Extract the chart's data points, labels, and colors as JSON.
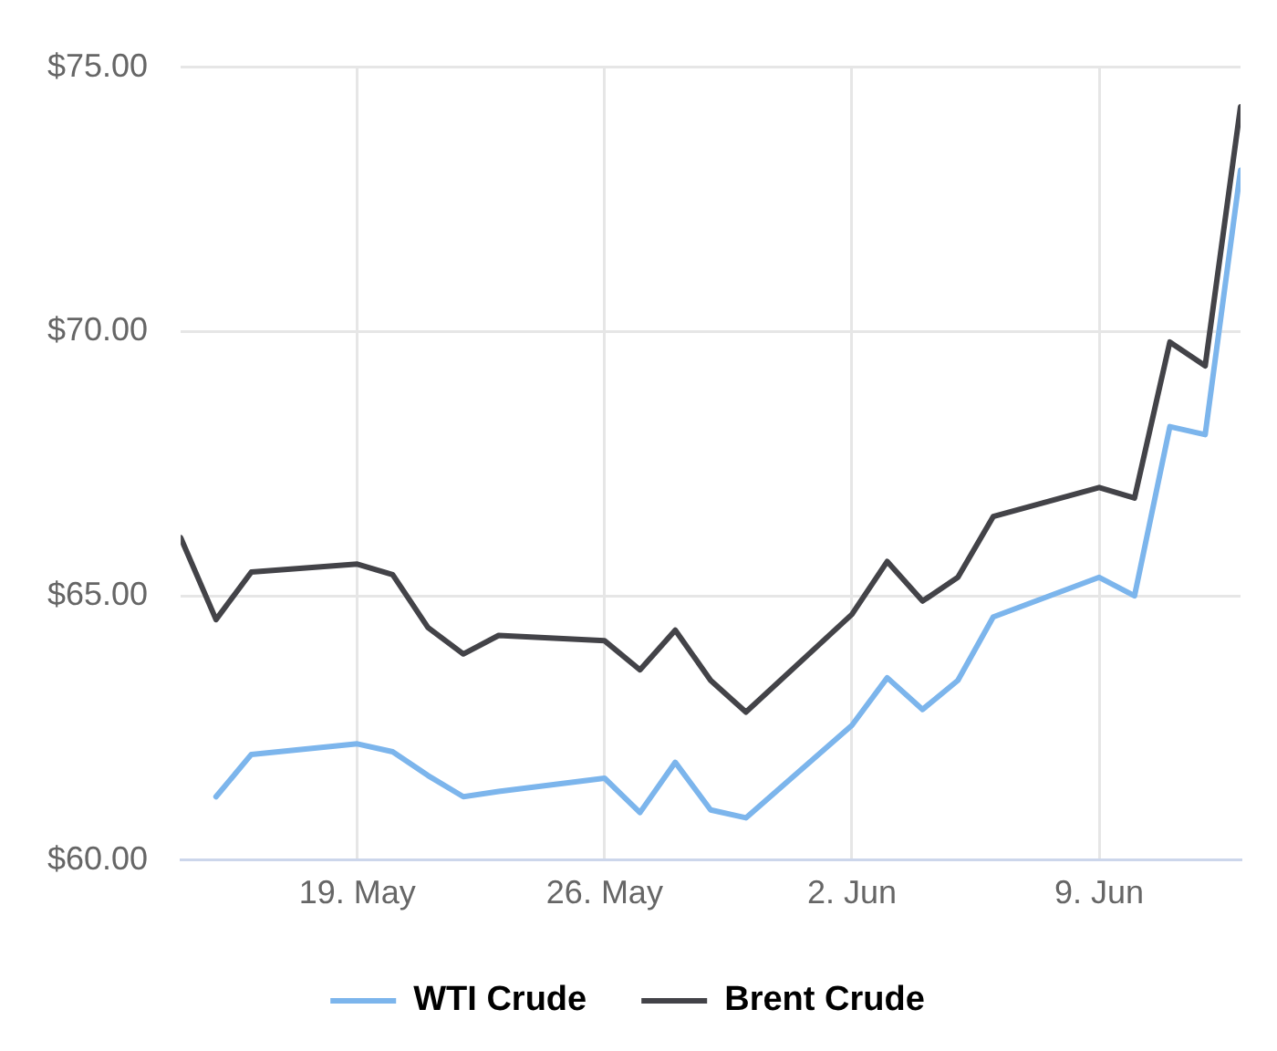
{
  "chart_data": {
    "type": "line",
    "xlim": [
      "--05-14",
      "--06-13"
    ],
    "xticks": [
      {
        "value": "--05-19",
        "label": "19. May"
      },
      {
        "value": "--05-26",
        "label": "26. May"
      },
      {
        "value": "--06-02",
        "label": "2. Jun"
      },
      {
        "value": "--06-09",
        "label": "9. Jun"
      }
    ],
    "ylim": [
      60,
      75
    ],
    "yticks": [
      {
        "value": 60,
        "label": "$60.00"
      },
      {
        "value": 65,
        "label": "$65.00"
      },
      {
        "value": 70,
        "label": "$70.00"
      },
      {
        "value": 75,
        "label": "$75.00"
      }
    ],
    "grid": true,
    "legend": "bottom",
    "marker": "none",
    "line_style": "solid",
    "series": [
      {
        "name": "WTI Crude",
        "color": "#7cb5ec",
        "x": [
          "--05-15",
          "--05-16",
          "--05-19",
          "--05-20",
          "--05-21",
          "--05-22",
          "--05-23",
          "--05-26",
          "--05-27",
          "--05-28",
          "--05-29",
          "--05-30",
          "--06-02",
          "--06-03",
          "--06-04",
          "--06-05",
          "--06-06",
          "--06-09",
          "--06-10",
          "--06-11",
          "--06-12",
          "--06-13"
        ],
        "values": [
          61.2,
          62.0,
          62.2,
          62.05,
          61.6,
          61.2,
          61.3,
          61.55,
          60.9,
          61.85,
          60.95,
          60.8,
          62.55,
          63.45,
          62.85,
          63.4,
          64.6,
          65.35,
          65.0,
          68.2,
          68.05,
          73.05
        ]
      },
      {
        "name": "Brent Crude",
        "color": "#434348",
        "x": [
          "--05-14",
          "--05-15",
          "--05-16",
          "--05-19",
          "--05-20",
          "--05-21",
          "--05-22",
          "--05-23",
          "--05-26",
          "--05-27",
          "--05-28",
          "--05-29",
          "--05-30",
          "--06-02",
          "--06-03",
          "--06-04",
          "--06-05",
          "--06-06",
          "--06-09",
          "--06-10",
          "--06-11",
          "--06-12",
          "--06-13"
        ],
        "values": [
          66.1,
          64.55,
          65.45,
          65.6,
          65.4,
          64.4,
          63.9,
          64.25,
          64.15,
          63.6,
          64.35,
          63.4,
          62.8,
          64.65,
          65.65,
          64.9,
          65.35,
          66.5,
          67.05,
          66.85,
          69.8,
          69.35,
          74.25
        ]
      }
    ]
  }
}
